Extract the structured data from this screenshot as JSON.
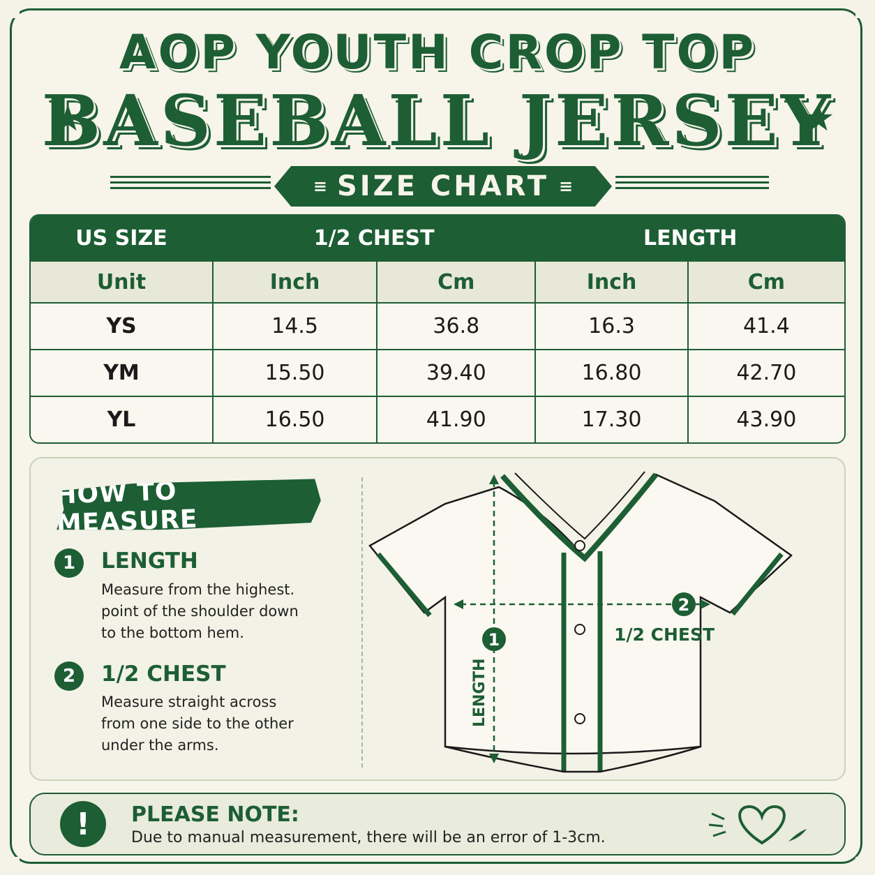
{
  "title": {
    "line1": "AOP YOUTH CROP TOP",
    "line2": "BASEBALL JERSEY",
    "banner": "SIZE CHART"
  },
  "table": {
    "headers": [
      "US SIZE",
      "1/2 CHEST",
      "LENGTH"
    ],
    "units": [
      "Unit",
      "Inch",
      "Cm",
      "Inch",
      "Cm"
    ],
    "rows": [
      [
        "YS",
        "14.5",
        "36.8",
        "16.3",
        "41.4"
      ],
      [
        "YM",
        "15.50",
        "39.40",
        "16.80",
        "42.70"
      ],
      [
        "YL",
        "16.50",
        "41.90",
        "17.30",
        "43.90"
      ]
    ]
  },
  "measure": {
    "heading": "HOW TO MEASURE",
    "steps": [
      {
        "num": "1",
        "title": "LENGTH",
        "desc": "Measure from the highest. point of the shoulder down to the bottom hem."
      },
      {
        "num": "2",
        "title": "1/2 CHEST",
        "desc": "Measure straight across from one side to the other under the arms."
      }
    ],
    "diagram": {
      "length_label": "LENGTH",
      "length_num": "1",
      "chest_label": "1/2 CHEST",
      "chest_num": "2"
    }
  },
  "note": {
    "icon": "!",
    "title": "PLEASE NOTE:",
    "text": "Due to manual measurement, there will be an error of 1-3cm."
  },
  "colors": {
    "accent": "#1d5e34",
    "background": "#f5f2e8"
  },
  "icons": [
    "star-icon",
    "exclamation-icon",
    "heart-icon"
  ]
}
